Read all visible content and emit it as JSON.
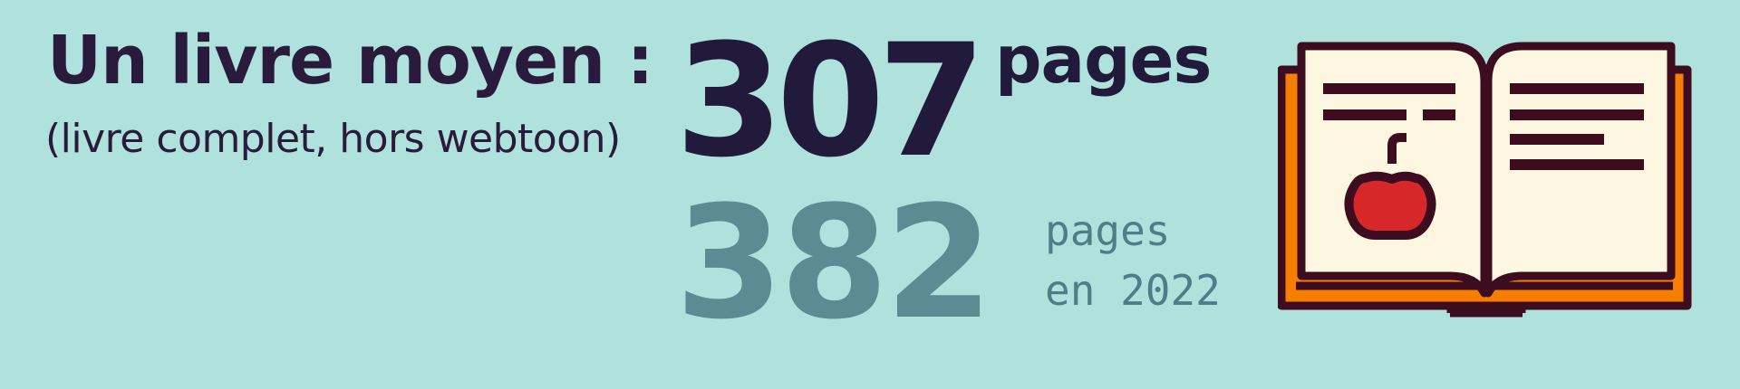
{
  "headline": {
    "title": "Un livre moyen :",
    "subtitle": "(livre complet, hors webtoon)"
  },
  "current": {
    "value": "307",
    "unit": "pages"
  },
  "previous": {
    "value": "382",
    "unit_line": "pages",
    "year_line": "en 2022"
  },
  "icon": "open-book-with-apple-icon",
  "colors": {
    "background": "#b0e2dd",
    "dark": "#211a3a",
    "muted": "#5b8b93",
    "book_outline": "#3d0c1e",
    "book_page": "#fdf7e1",
    "book_cover": "#f77f00",
    "apple": "#d62828"
  }
}
